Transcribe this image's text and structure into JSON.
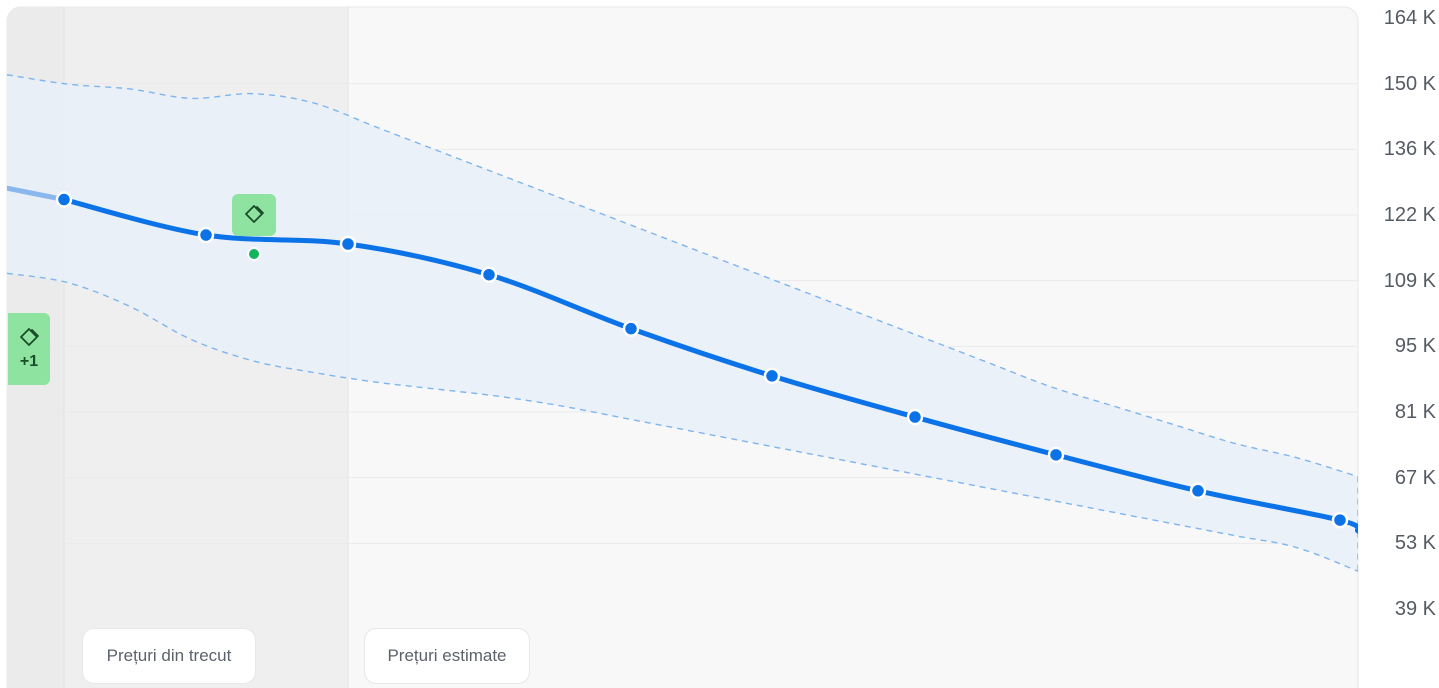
{
  "chart_data": {
    "type": "line",
    "y_ticks": [
      "164 K",
      "150 K",
      "136 K",
      "122 K",
      "109 K",
      "95 K",
      "81 K",
      "67 K",
      "53 K",
      "39 K"
    ],
    "ylim": [
      39000,
      164000
    ],
    "series": [
      {
        "values": [
          128000,
          125600,
          118100,
          116200,
          109700,
          98300,
          88300,
          79600,
          71600,
          64000,
          57800,
          55500
        ]
      }
    ],
    "band_upper": [
      152000,
      150000,
      149000,
      147000,
      148000,
      146000,
      141000,
      136000,
      131000,
      126000,
      121000,
      116000,
      111000,
      106000,
      101000,
      96000,
      91000,
      86000,
      82000,
      78000,
      74000,
      71000,
      67000
    ],
    "band_lower": [
      110000,
      108000,
      103000,
      96000,
      91500,
      89000,
      87000,
      85500,
      84000,
      82000,
      79500,
      77000,
      74500,
      72000,
      69500,
      67000,
      64500,
      62000,
      59500,
      57000,
      54500,
      52000,
      47000
    ],
    "period_labels": [
      "Prețuri din trecut",
      "Prețuri estimate"
    ],
    "grid": true,
    "colors": {
      "line": "#0b72e7",
      "line_faded": "#8ab8ee",
      "band_fill": "#e9f0f9",
      "band_stroke": "#7fb5ee",
      "past_shade": "#efeff0",
      "grid": "#e9eaec",
      "badge": "#8fe3a0",
      "badge_dot": "#12b45e"
    }
  },
  "badges": {
    "edge_count": "+1",
    "icon": "price-tag-icon"
  }
}
